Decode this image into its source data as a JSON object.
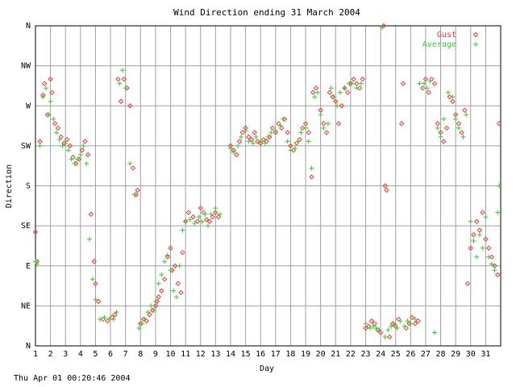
{
  "footer": "Thu Apr 01 00:20:46 2004",
  "colors": {
    "gust": "#ff3333",
    "average": "#33cc33",
    "grid": "#a0a0a0",
    "axis": "#000000"
  },
  "chart_data": {
    "type": "scatter",
    "title": "Wind Direction ending 31 March 2004",
    "xlabel": "Day",
    "ylabel": "Direction",
    "xlim": [
      1,
      32
    ],
    "ylim": [
      0,
      360
    ],
    "xticks": [
      "1",
      "2",
      "3",
      "4",
      "5",
      "6",
      "7",
      "8",
      "9",
      "10",
      "11",
      "12",
      "13",
      "14",
      "15",
      "16",
      "17",
      "18",
      "19",
      "20",
      "21",
      "22",
      "23",
      "24",
      "25",
      "26",
      "27",
      "28",
      "29",
      "30",
      "31"
    ],
    "yticks": [
      {
        "value": 0,
        "label": "N"
      },
      {
        "value": 45,
        "label": "NE"
      },
      {
        "value": 90,
        "label": "E"
      },
      {
        "value": 135,
        "label": "SE"
      },
      {
        "value": 180,
        "label": "S"
      },
      {
        "value": 225,
        "label": "SW"
      },
      {
        "value": 270,
        "label": "W"
      },
      {
        "value": 315,
        "label": "NW"
      },
      {
        "value": 360,
        "label": "N"
      }
    ],
    "grid": true,
    "legend_position": "top-right",
    "series": [
      {
        "name": "Gust",
        "marker": "diamond",
        "color": "#ff3333",
        "points": [
          [
            1.0,
            128
          ],
          [
            1.1,
            95
          ],
          [
            1.3,
            230
          ],
          [
            1.5,
            282
          ],
          [
            1.6,
            295
          ],
          [
            1.8,
            260
          ],
          [
            2.0,
            300
          ],
          [
            2.1,
            285
          ],
          [
            2.3,
            250
          ],
          [
            2.5,
            245
          ],
          [
            2.7,
            235
          ],
          [
            2.9,
            228
          ],
          [
            3.1,
            232
          ],
          [
            3.3,
            225
          ],
          [
            3.5,
            212
          ],
          [
            3.7,
            205
          ],
          [
            3.9,
            210
          ],
          [
            4.1,
            220
          ],
          [
            4.3,
            230
          ],
          [
            4.5,
            215
          ],
          [
            4.7,
            148
          ],
          [
            4.9,
            95
          ],
          [
            5.0,
            70
          ],
          [
            5.2,
            50
          ],
          [
            5.5,
            30
          ],
          [
            5.8,
            28
          ],
          [
            6.1,
            32
          ],
          [
            6.3,
            35
          ],
          [
            6.5,
            300
          ],
          [
            6.7,
            275
          ],
          [
            6.9,
            300
          ],
          [
            7.1,
            290
          ],
          [
            7.3,
            270
          ],
          [
            7.5,
            200
          ],
          [
            7.7,
            170
          ],
          [
            7.8,
            175
          ],
          [
            8.0,
            25
          ],
          [
            8.2,
            30
          ],
          [
            8.4,
            28
          ],
          [
            8.6,
            35
          ],
          [
            8.8,
            40
          ],
          [
            9.0,
            45
          ],
          [
            9.1,
            50
          ],
          [
            9.2,
            55
          ],
          [
            9.4,
            62
          ],
          [
            9.6,
            75
          ],
          [
            9.8,
            100
          ],
          [
            10.0,
            110
          ],
          [
            10.1,
            85
          ],
          [
            10.3,
            90
          ],
          [
            10.5,
            70
          ],
          [
            10.7,
            60
          ],
          [
            10.8,
            105
          ],
          [
            11.0,
            140
          ],
          [
            11.2,
            150
          ],
          [
            11.5,
            145
          ],
          [
            11.8,
            140
          ],
          [
            12.0,
            155
          ],
          [
            12.2,
            150
          ],
          [
            12.4,
            142
          ],
          [
            12.6,
            140
          ],
          [
            12.8,
            145
          ],
          [
            13.0,
            150
          ],
          [
            13.2,
            145
          ],
          [
            14.0,
            225
          ],
          [
            14.2,
            220
          ],
          [
            14.4,
            215
          ],
          [
            14.6,
            230
          ],
          [
            14.8,
            240
          ],
          [
            15.0,
            245
          ],
          [
            15.2,
            235
          ],
          [
            15.4,
            232
          ],
          [
            15.6,
            240
          ],
          [
            15.8,
            230
          ],
          [
            16.0,
            228
          ],
          [
            16.2,
            232
          ],
          [
            16.4,
            230
          ],
          [
            16.6,
            235
          ],
          [
            16.8,
            245
          ],
          [
            17.0,
            240
          ],
          [
            17.2,
            250
          ],
          [
            17.4,
            245
          ],
          [
            17.6,
            255
          ],
          [
            17.8,
            240
          ],
          [
            18.0,
            225
          ],
          [
            18.2,
            220
          ],
          [
            18.4,
            228
          ],
          [
            18.6,
            232
          ],
          [
            18.8,
            245
          ],
          [
            19.0,
            250
          ],
          [
            19.2,
            240
          ],
          [
            19.4,
            190
          ],
          [
            19.5,
            285
          ],
          [
            19.7,
            290
          ],
          [
            20.0,
            265
          ],
          [
            20.2,
            250
          ],
          [
            20.4,
            240
          ],
          [
            20.6,
            285
          ],
          [
            20.8,
            280
          ],
          [
            21.0,
            275
          ],
          [
            21.2,
            250
          ],
          [
            21.4,
            270
          ],
          [
            21.6,
            290
          ],
          [
            21.8,
            285
          ],
          [
            22.0,
            295
          ],
          [
            22.2,
            300
          ],
          [
            22.4,
            295
          ],
          [
            22.6,
            290
          ],
          [
            22.8,
            300
          ],
          [
            23.0,
            20
          ],
          [
            23.2,
            22
          ],
          [
            23.4,
            28
          ],
          [
            23.6,
            25
          ],
          [
            23.8,
            18
          ],
          [
            24.0,
            15
          ],
          [
            24.2,
            360
          ],
          [
            24.3,
            180
          ],
          [
            24.4,
            175
          ],
          [
            24.6,
            10
          ],
          [
            24.8,
            25
          ],
          [
            25.0,
            22
          ],
          [
            25.2,
            30
          ],
          [
            25.4,
            250
          ],
          [
            25.5,
            295
          ],
          [
            25.7,
            20
          ],
          [
            25.9,
            25
          ],
          [
            26.1,
            32
          ],
          [
            26.3,
            25
          ],
          [
            26.5,
            28
          ],
          [
            26.8,
            290
          ],
          [
            27.0,
            300
          ],
          [
            27.2,
            285
          ],
          [
            27.4,
            300
          ],
          [
            27.6,
            295
          ],
          [
            27.8,
            250
          ],
          [
            28.0,
            240
          ],
          [
            28.2,
            230
          ],
          [
            28.4,
            245
          ],
          [
            28.6,
            280
          ],
          [
            28.8,
            275
          ],
          [
            29.0,
            260
          ],
          [
            29.2,
            250
          ],
          [
            29.4,
            240
          ],
          [
            29.6,
            265
          ],
          [
            29.8,
            70
          ],
          [
            30.0,
            110
          ],
          [
            30.2,
            125
          ],
          [
            30.4,
            140
          ],
          [
            30.6,
            130
          ],
          [
            30.8,
            150
          ],
          [
            31.0,
            120
          ],
          [
            31.2,
            110
          ],
          [
            31.4,
            100
          ],
          [
            31.6,
            90
          ],
          [
            31.8,
            80
          ],
          [
            31.9,
            250
          ]
        ]
      },
      {
        "name": "Average",
        "marker": "plus",
        "color": "#33cc33",
        "points": [
          [
            1.0,
            95
          ],
          [
            1.1,
            92
          ],
          [
            1.3,
            225
          ],
          [
            1.5,
            280
          ],
          [
            1.7,
            290
          ],
          [
            1.9,
            260
          ],
          [
            2.0,
            275
          ],
          [
            2.2,
            255
          ],
          [
            2.4,
            240
          ],
          [
            2.6,
            232
          ],
          [
            2.8,
            225
          ],
          [
            3.0,
            228
          ],
          [
            3.2,
            220
          ],
          [
            3.4,
            210
          ],
          [
            3.6,
            205
          ],
          [
            3.8,
            210
          ],
          [
            4.0,
            215
          ],
          [
            4.2,
            225
          ],
          [
            4.4,
            205
          ],
          [
            4.6,
            120
          ],
          [
            4.8,
            75
          ],
          [
            5.0,
            52
          ],
          [
            5.3,
            30
          ],
          [
            5.6,
            32
          ],
          [
            5.9,
            30
          ],
          [
            6.2,
            30
          ],
          [
            6.4,
            38
          ],
          [
            6.6,
            295
          ],
          [
            6.8,
            310
          ],
          [
            7.0,
            290
          ],
          [
            7.3,
            205
          ],
          [
            7.6,
            170
          ],
          [
            7.9,
            20
          ],
          [
            8.1,
            25
          ],
          [
            8.3,
            30
          ],
          [
            8.5,
            38
          ],
          [
            8.7,
            45
          ],
          [
            8.9,
            40
          ],
          [
            9.0,
            50
          ],
          [
            9.2,
            70
          ],
          [
            9.4,
            80
          ],
          [
            9.6,
            95
          ],
          [
            9.8,
            102
          ],
          [
            10.0,
            85
          ],
          [
            10.2,
            62
          ],
          [
            10.4,
            55
          ],
          [
            10.6,
            90
          ],
          [
            10.8,
            130
          ],
          [
            11.0,
            140
          ],
          [
            11.3,
            142
          ],
          [
            11.6,
            138
          ],
          [
            11.9,
            145
          ],
          [
            12.1,
            140
          ],
          [
            12.3,
            148
          ],
          [
            12.5,
            135
          ],
          [
            12.7,
            148
          ],
          [
            13.0,
            155
          ],
          [
            13.3,
            148
          ],
          [
            14.0,
            222
          ],
          [
            14.2,
            218
          ],
          [
            14.5,
            225
          ],
          [
            14.7,
            235
          ],
          [
            15.0,
            242
          ],
          [
            15.2,
            230
          ],
          [
            15.5,
            228
          ],
          [
            15.7,
            235
          ],
          [
            16.0,
            230
          ],
          [
            16.3,
            228
          ],
          [
            16.5,
            235
          ],
          [
            16.7,
            240
          ],
          [
            17.0,
            242
          ],
          [
            17.3,
            248
          ],
          [
            17.5,
            255
          ],
          [
            17.8,
            230
          ],
          [
            18.0,
            220
          ],
          [
            18.3,
            222
          ],
          [
            18.5,
            230
          ],
          [
            18.7,
            240
          ],
          [
            19.0,
            245
          ],
          [
            19.2,
            230
          ],
          [
            19.4,
            200
          ],
          [
            19.6,
            280
          ],
          [
            19.8,
            285
          ],
          [
            20.0,
            260
          ],
          [
            20.2,
            245
          ],
          [
            20.5,
            250
          ],
          [
            20.7,
            290
          ],
          [
            20.9,
            280
          ],
          [
            21.1,
            270
          ],
          [
            21.3,
            285
          ],
          [
            21.6,
            290
          ],
          [
            21.9,
            295
          ],
          [
            22.1,
            295
          ],
          [
            22.4,
            290
          ],
          [
            22.7,
            295
          ],
          [
            23.0,
            25
          ],
          [
            23.3,
            20
          ],
          [
            23.5,
            22
          ],
          [
            23.7,
            20
          ],
          [
            23.9,
            18
          ],
          [
            24.1,
            358
          ],
          [
            24.3,
            10
          ],
          [
            24.5,
            18
          ],
          [
            24.7,
            22
          ],
          [
            24.9,
            25
          ],
          [
            25.1,
            20
          ],
          [
            25.3,
            28
          ],
          [
            25.6,
            22
          ],
          [
            25.8,
            28
          ],
          [
            26.0,
            25
          ],
          [
            26.3,
            30
          ],
          [
            26.6,
            295
          ],
          [
            26.9,
            295
          ],
          [
            27.1,
            290
          ],
          [
            27.3,
            298
          ],
          [
            27.6,
            15
          ],
          [
            27.8,
            245
          ],
          [
            28.0,
            235
          ],
          [
            28.2,
            255
          ],
          [
            28.5,
            285
          ],
          [
            28.8,
            280
          ],
          [
            29.0,
            255
          ],
          [
            29.2,
            245
          ],
          [
            29.5,
            235
          ],
          [
            29.7,
            260
          ],
          [
            30.0,
            140
          ],
          [
            30.2,
            118
          ],
          [
            30.4,
            100
          ],
          [
            30.6,
            125
          ],
          [
            30.8,
            110
          ],
          [
            31.0,
            145
          ],
          [
            31.2,
            100
          ],
          [
            31.4,
            92
          ],
          [
            31.6,
            85
          ],
          [
            31.8,
            150
          ],
          [
            31.9,
            180
          ]
        ]
      }
    ]
  }
}
